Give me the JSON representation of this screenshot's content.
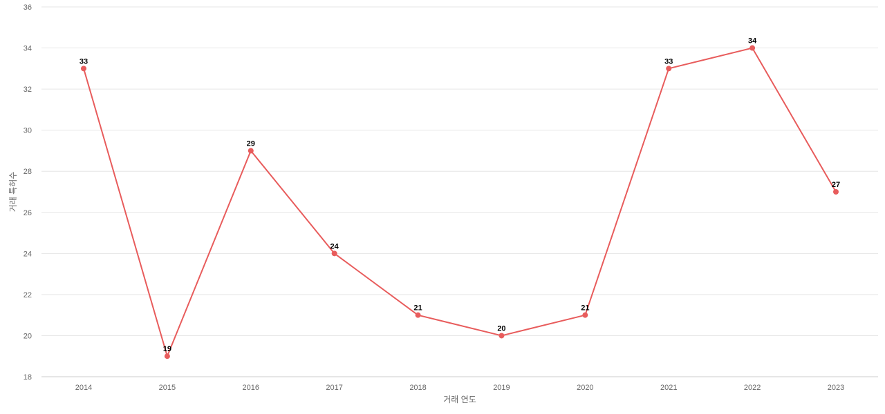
{
  "chart_data": {
    "type": "line",
    "title": "",
    "xlabel": "거래 연도",
    "ylabel": "거래 특허수",
    "categories": [
      "2014",
      "2015",
      "2016",
      "2017",
      "2018",
      "2019",
      "2020",
      "2021",
      "2022",
      "2023"
    ],
    "series": [
      {
        "values": [
          33,
          19,
          29,
          24,
          21,
          20,
          21,
          33,
          34,
          27
        ],
        "color": "#e85c5c"
      }
    ],
    "ylim": [
      18,
      36
    ],
    "yticks": [
      18,
      20,
      22,
      24,
      26,
      28,
      30,
      32,
      34,
      36
    ],
    "grid": true,
    "gridColor": "#e6e6e6",
    "data_labels": true,
    "legend": "none"
  }
}
